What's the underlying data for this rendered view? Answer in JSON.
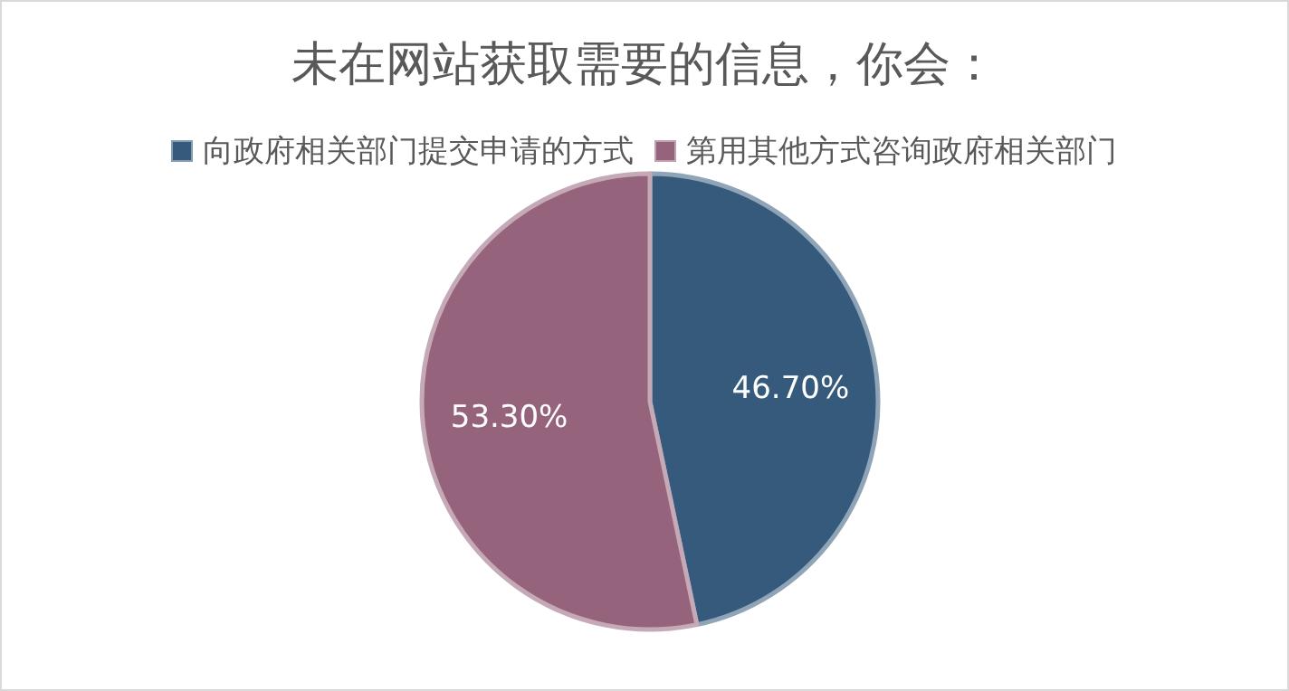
{
  "chart_data": {
    "type": "pie",
    "title": "未在网站获取需要的信息，你会：",
    "categories": [
      "向政府相关部门提交申请的方式",
      "第用其他方式咨询政府相关部门"
    ],
    "values": [
      46.7,
      53.3
    ],
    "value_labels": [
      "46.70%",
      "53.30%"
    ],
    "colors": [
      "#355a7c",
      "#96637c"
    ],
    "legend": "top"
  }
}
